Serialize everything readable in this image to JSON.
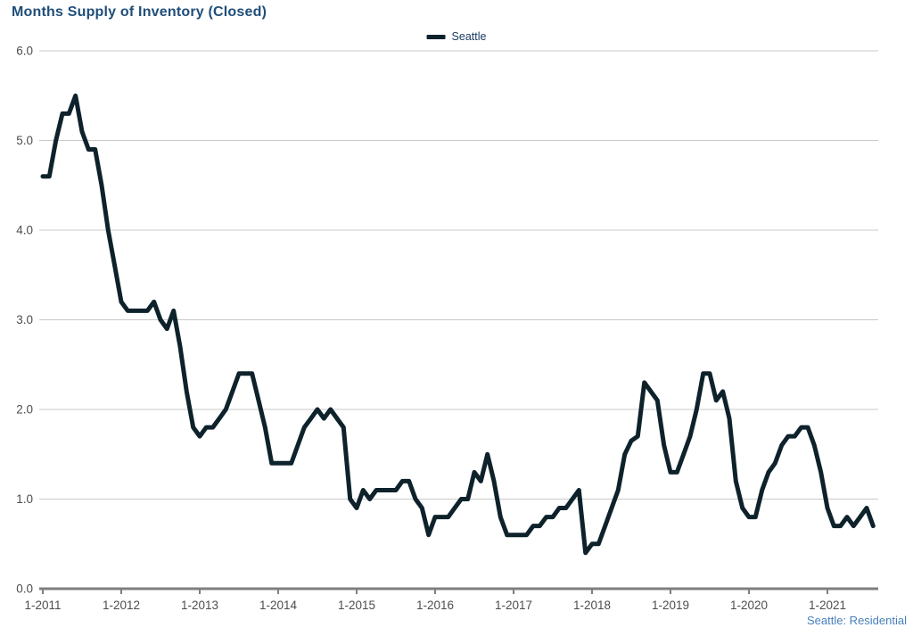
{
  "title": "Months Supply of Inventory (Closed)",
  "legend": {
    "label": "Seattle"
  },
  "footer_note": "Seattle: Residential",
  "colors": {
    "title_text": "#1f4e79",
    "legend_text": "#17375d",
    "line": "#0e222b",
    "gridline": "#c9c9c9",
    "axis": "#7f7f7f",
    "tick_label": "#4d4d4d",
    "footer_text": "#4a80ba"
  },
  "chart_data": {
    "type": "line",
    "title": "Months Supply of Inventory (Closed)",
    "xlabel": "",
    "ylabel": "",
    "ylim": [
      0,
      6
    ],
    "grid": "horizontal",
    "legend_position": "top-center",
    "annotation": "Seattle: Residential",
    "x_tick_labels": [
      "1-2011",
      "1-2012",
      "1-2013",
      "1-2014",
      "1-2015",
      "1-2016",
      "1-2017",
      "1-2018",
      "1-2019",
      "1-2020",
      "1-2021"
    ],
    "y_tick_labels": [
      "0.0",
      "1.0",
      "2.0",
      "3.0",
      "4.0",
      "5.0",
      "6.0"
    ],
    "series": [
      {
        "name": "Seattle",
        "start": "Jan 2011",
        "end": "Aug 2021",
        "frequency": "monthly",
        "values": [
          4.6,
          4.6,
          5.0,
          5.3,
          5.3,
          5.5,
          5.1,
          4.9,
          4.9,
          4.5,
          4.0,
          3.6,
          3.2,
          3.1,
          3.1,
          3.1,
          3.1,
          3.2,
          3.0,
          2.9,
          3.1,
          2.7,
          2.2,
          1.8,
          1.7,
          1.8,
          1.8,
          1.9,
          2.0,
          2.2,
          2.4,
          2.4,
          2.4,
          2.1,
          1.8,
          1.4,
          1.4,
          1.4,
          1.4,
          1.6,
          1.8,
          1.9,
          2.0,
          1.9,
          2.0,
          1.9,
          1.8,
          1.0,
          0.9,
          1.1,
          1.0,
          1.1,
          1.1,
          1.1,
          1.1,
          1.2,
          1.2,
          1.0,
          0.9,
          0.6,
          0.8,
          0.8,
          0.8,
          0.9,
          1.0,
          1.0,
          1.3,
          1.2,
          1.5,
          1.2,
          0.8,
          0.6,
          0.6,
          0.6,
          0.6,
          0.7,
          0.7,
          0.8,
          0.8,
          0.9,
          0.9,
          1.0,
          1.1,
          0.4,
          0.5,
          0.5,
          0.7,
          0.9,
          1.1,
          1.5,
          1.65,
          1.7,
          2.3,
          2.2,
          2.1,
          1.6,
          1.3,
          1.3,
          1.5,
          1.7,
          2.0,
          2.4,
          2.4,
          2.1,
          2.2,
          1.9,
          1.2,
          0.9,
          0.8,
          0.8,
          1.1,
          1.3,
          1.4,
          1.6,
          1.7,
          1.7,
          1.8,
          1.8,
          1.6,
          1.3,
          0.9,
          0.7,
          0.7,
          0.8,
          0.7,
          0.8,
          0.9,
          0.7
        ]
      }
    ]
  }
}
